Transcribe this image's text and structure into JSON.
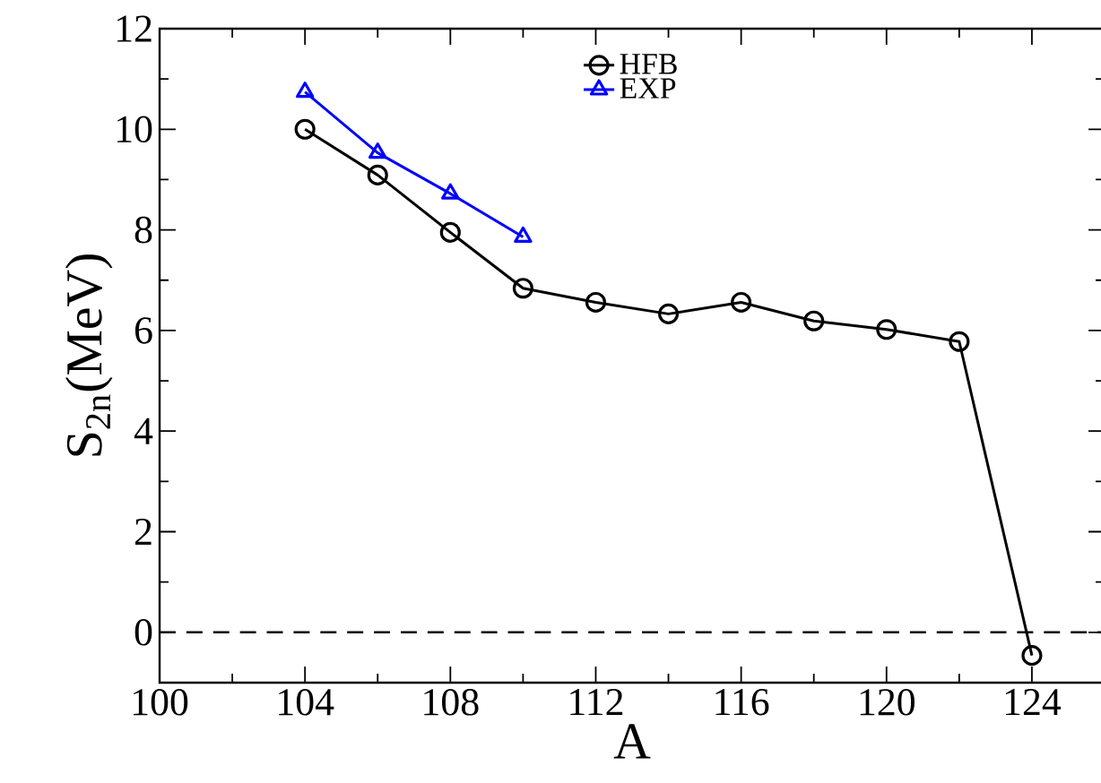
{
  "chart_data": {
    "type": "line",
    "xlabel": "A",
    "ylabel": "S$_{2n}$(MeV)",
    "x": [
      104,
      106,
      108,
      110,
      112,
      114,
      116,
      118,
      120,
      122,
      124
    ],
    "series": [
      {
        "name": "HFB",
        "color": "#000000",
        "marker": "circle",
        "values": [
          10.0,
          9.09,
          7.95,
          6.84,
          6.56,
          6.33,
          6.56,
          6.19,
          6.02,
          5.78,
          -0.46
        ]
      },
      {
        "name": "EXP",
        "color": "#0000ff",
        "marker": "triangle",
        "x": [
          104,
          106,
          108,
          110
        ],
        "values": [
          10.74,
          9.53,
          8.72,
          7.86
        ]
      }
    ],
    "xlim": [
      100,
      126
    ],
    "ylim": [
      -1,
      12
    ],
    "xticks": [
      100,
      104,
      108,
      112,
      116,
      120,
      124
    ],
    "yticks": [
      0,
      2,
      4,
      6,
      8,
      10,
      12
    ],
    "ref_lines": [
      {
        "axis": "y",
        "value": 0,
        "line_style": "dashed",
        "color": "#000000"
      }
    ],
    "legend": "top",
    "grid": false,
    "line_style": "solid"
  }
}
